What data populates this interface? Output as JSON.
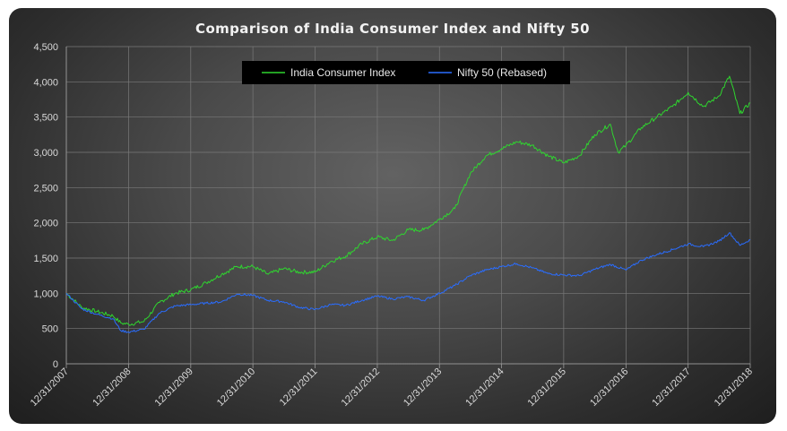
{
  "chart_data": {
    "type": "line",
    "title": "Comparison of India Consumer Index and Nifty 50",
    "xlabel": "",
    "ylabel": "",
    "ylim": [
      0,
      4500
    ],
    "y_ticks": [
      0,
      500,
      1000,
      1500,
      2000,
      2500,
      3000,
      3500,
      4000,
      4500
    ],
    "y_tick_labels": [
      "0",
      "500",
      "1,000",
      "1,500",
      "2,000",
      "2,500",
      "3,000",
      "3,500",
      "4,000",
      "4,500"
    ],
    "x_range": [
      "12/31/2007",
      "12/31/2018"
    ],
    "x_tick_labels": [
      "12/31/2007",
      "12/31/2008",
      "12/31/2009",
      "12/31/2010",
      "12/31/2011",
      "12/31/2012",
      "12/31/2013",
      "12/31/2014",
      "12/31/2015",
      "12/31/2016",
      "12/31/2017",
      "12/31/2018"
    ],
    "grid": true,
    "legend_position": "top",
    "series": [
      {
        "name": "India Consumer Index",
        "color": "#2fd52f",
        "points": [
          [
            "12/31/2007",
            1000
          ],
          [
            "3/31/2008",
            800
          ],
          [
            "6/30/2008",
            740
          ],
          [
            "9/30/2008",
            680
          ],
          [
            "11/15/2008",
            580
          ],
          [
            "12/31/2008",
            560
          ],
          [
            "3/31/2009",
            600
          ],
          [
            "6/30/2009",
            870
          ],
          [
            "9/30/2009",
            1000
          ],
          [
            "12/31/2009",
            1050
          ],
          [
            "3/31/2010",
            1150
          ],
          [
            "6/30/2010",
            1270
          ],
          [
            "9/30/2010",
            1380
          ],
          [
            "12/31/2010",
            1380
          ],
          [
            "3/31/2011",
            1270
          ],
          [
            "6/30/2011",
            1350
          ],
          [
            "9/30/2011",
            1300
          ],
          [
            "12/31/2011",
            1300
          ],
          [
            "3/31/2012",
            1450
          ],
          [
            "6/30/2012",
            1530
          ],
          [
            "9/30/2012",
            1700
          ],
          [
            "12/31/2012",
            1800
          ],
          [
            "3/31/2013",
            1750
          ],
          [
            "6/30/2013",
            1900
          ],
          [
            "9/30/2013",
            1900
          ],
          [
            "12/31/2013",
            2050
          ],
          [
            "3/31/2014",
            2200
          ],
          [
            "6/30/2014",
            2700
          ],
          [
            "9/30/2014",
            2950
          ],
          [
            "12/31/2014",
            3050
          ],
          [
            "3/31/2015",
            3150
          ],
          [
            "6/30/2015",
            3100
          ],
          [
            "9/30/2015",
            2950
          ],
          [
            "12/31/2015",
            2850
          ],
          [
            "3/31/2016",
            2950
          ],
          [
            "6/30/2016",
            3250
          ],
          [
            "9/30/2016",
            3400
          ],
          [
            "11/15/2016",
            3000
          ],
          [
            "12/31/2016",
            3100
          ],
          [
            "3/31/2017",
            3350
          ],
          [
            "6/30/2017",
            3500
          ],
          [
            "9/30/2017",
            3650
          ],
          [
            "12/31/2017",
            3850
          ],
          [
            "3/31/2018",
            3650
          ],
          [
            "6/30/2018",
            3800
          ],
          [
            "8/31/2018",
            4080
          ],
          [
            "10/31/2018",
            3550
          ],
          [
            "12/31/2018",
            3700
          ]
        ]
      },
      {
        "name": "Nifty 50 (Rebased)",
        "color": "#2a6dff",
        "points": [
          [
            "12/31/2007",
            1000
          ],
          [
            "3/31/2008",
            780
          ],
          [
            "6/30/2008",
            700
          ],
          [
            "9/30/2008",
            640
          ],
          [
            "11/15/2008",
            470
          ],
          [
            "12/31/2008",
            450
          ],
          [
            "3/31/2009",
            490
          ],
          [
            "6/30/2009",
            720
          ],
          [
            "9/30/2009",
            820
          ],
          [
            "12/31/2009",
            840
          ],
          [
            "3/31/2010",
            860
          ],
          [
            "6/30/2010",
            880
          ],
          [
            "9/30/2010",
            990
          ],
          [
            "12/31/2010",
            970
          ],
          [
            "3/31/2011",
            900
          ],
          [
            "6/30/2011",
            880
          ],
          [
            "9/30/2011",
            800
          ],
          [
            "12/31/2011",
            770
          ],
          [
            "3/31/2012",
            840
          ],
          [
            "6/30/2012",
            830
          ],
          [
            "9/30/2012",
            900
          ],
          [
            "12/31/2012",
            960
          ],
          [
            "3/31/2013",
            920
          ],
          [
            "6/30/2013",
            950
          ],
          [
            "9/30/2013",
            900
          ],
          [
            "12/31/2013",
            1000
          ],
          [
            "3/31/2014",
            1110
          ],
          [
            "6/30/2014",
            1250
          ],
          [
            "9/30/2014",
            1330
          ],
          [
            "12/31/2014",
            1380
          ],
          [
            "3/31/2015",
            1420
          ],
          [
            "6/30/2015",
            1360
          ],
          [
            "9/30/2015",
            1280
          ],
          [
            "12/31/2015",
            1260
          ],
          [
            "3/31/2016",
            1250
          ],
          [
            "6/30/2016",
            1340
          ],
          [
            "9/30/2016",
            1410
          ],
          [
            "12/31/2016",
            1330
          ],
          [
            "3/31/2017",
            1470
          ],
          [
            "6/30/2017",
            1550
          ],
          [
            "9/30/2017",
            1620
          ],
          [
            "12/31/2017",
            1700
          ],
          [
            "3/31/2018",
            1660
          ],
          [
            "6/30/2018",
            1740
          ],
          [
            "8/31/2018",
            1860
          ],
          [
            "10/31/2018",
            1680
          ],
          [
            "12/31/2018",
            1760
          ]
        ]
      }
    ]
  }
}
